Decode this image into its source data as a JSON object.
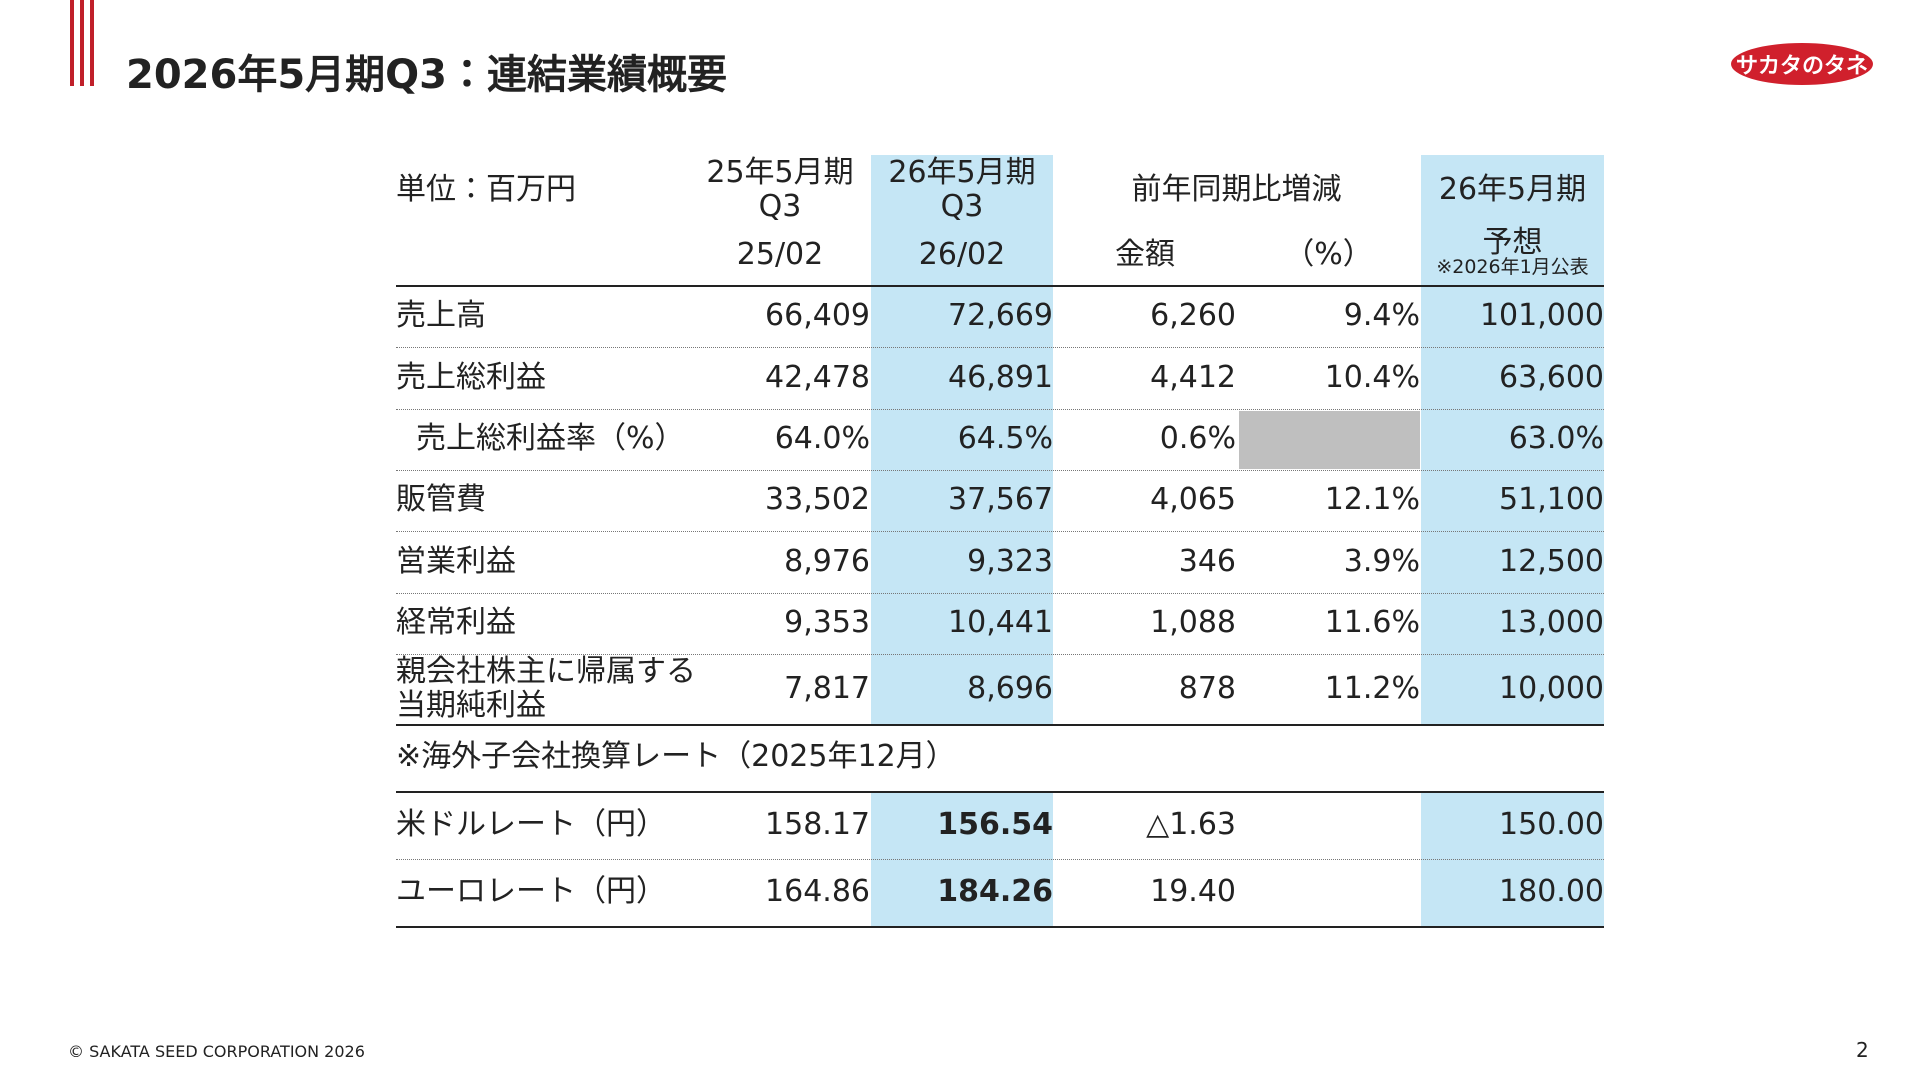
{
  "header": {
    "title": "2026年5月期Q3：連結業績概要",
    "logo": "サカタのタネ"
  },
  "table": {
    "unit": "単位：百万円",
    "header_top": [
      "25年5月期\nQ3",
      "26年5月期\nQ3",
      "前年同期比増減",
      "26年5月期"
    ],
    "header_sub": [
      "25/02",
      "26/02",
      "金額",
      "（%）",
      "予想"
    ],
    "forecast_note": "※2026年1月公表",
    "rows": [
      {
        "label": "売上高",
        "cells": [
          "66,409",
          "72,669",
          "6,260",
          "9.4%",
          "101,000"
        ]
      },
      {
        "label": "売上総利益",
        "cells": [
          "42,478",
          "46,891",
          "4,412",
          "10.4%",
          "63,600"
        ]
      },
      {
        "label": "売上総利益率（%）",
        "cells": [
          "64.0%",
          "64.5%",
          "0.6%",
          null,
          "63.0%"
        ]
      },
      {
        "label": "販管費",
        "cells": [
          "33,502",
          "37,567",
          "4,065",
          "12.1%",
          "51,100"
        ]
      },
      {
        "label": "営業利益",
        "cells": [
          "8,976",
          "9,323",
          "346",
          "3.9%",
          "12,500"
        ]
      },
      {
        "label": "経常利益",
        "cells": [
          "9,353",
          "10,441",
          "1,088",
          "11.6%",
          "13,000"
        ]
      },
      {
        "label": "親会社株主に帰属する\n当期純利益",
        "cells": [
          "7,817",
          "8,696",
          "878",
          "11.2%",
          "10,000"
        ]
      }
    ]
  },
  "fx": {
    "note": "※海外子会社換算レート（2025年12月）",
    "rows": [
      {
        "label": "米ドルレート（円）",
        "cells": [
          "158.17",
          "156.54",
          "△1.63",
          null,
          "150.00"
        ]
      },
      {
        "label": "ユーロレート（円）",
        "cells": [
          "164.86",
          "184.26",
          "19.40",
          null,
          "180.00"
        ]
      }
    ]
  },
  "footer": {
    "copyright": "© SAKATA SEED CORPORATION 2026",
    "page": "2"
  }
}
